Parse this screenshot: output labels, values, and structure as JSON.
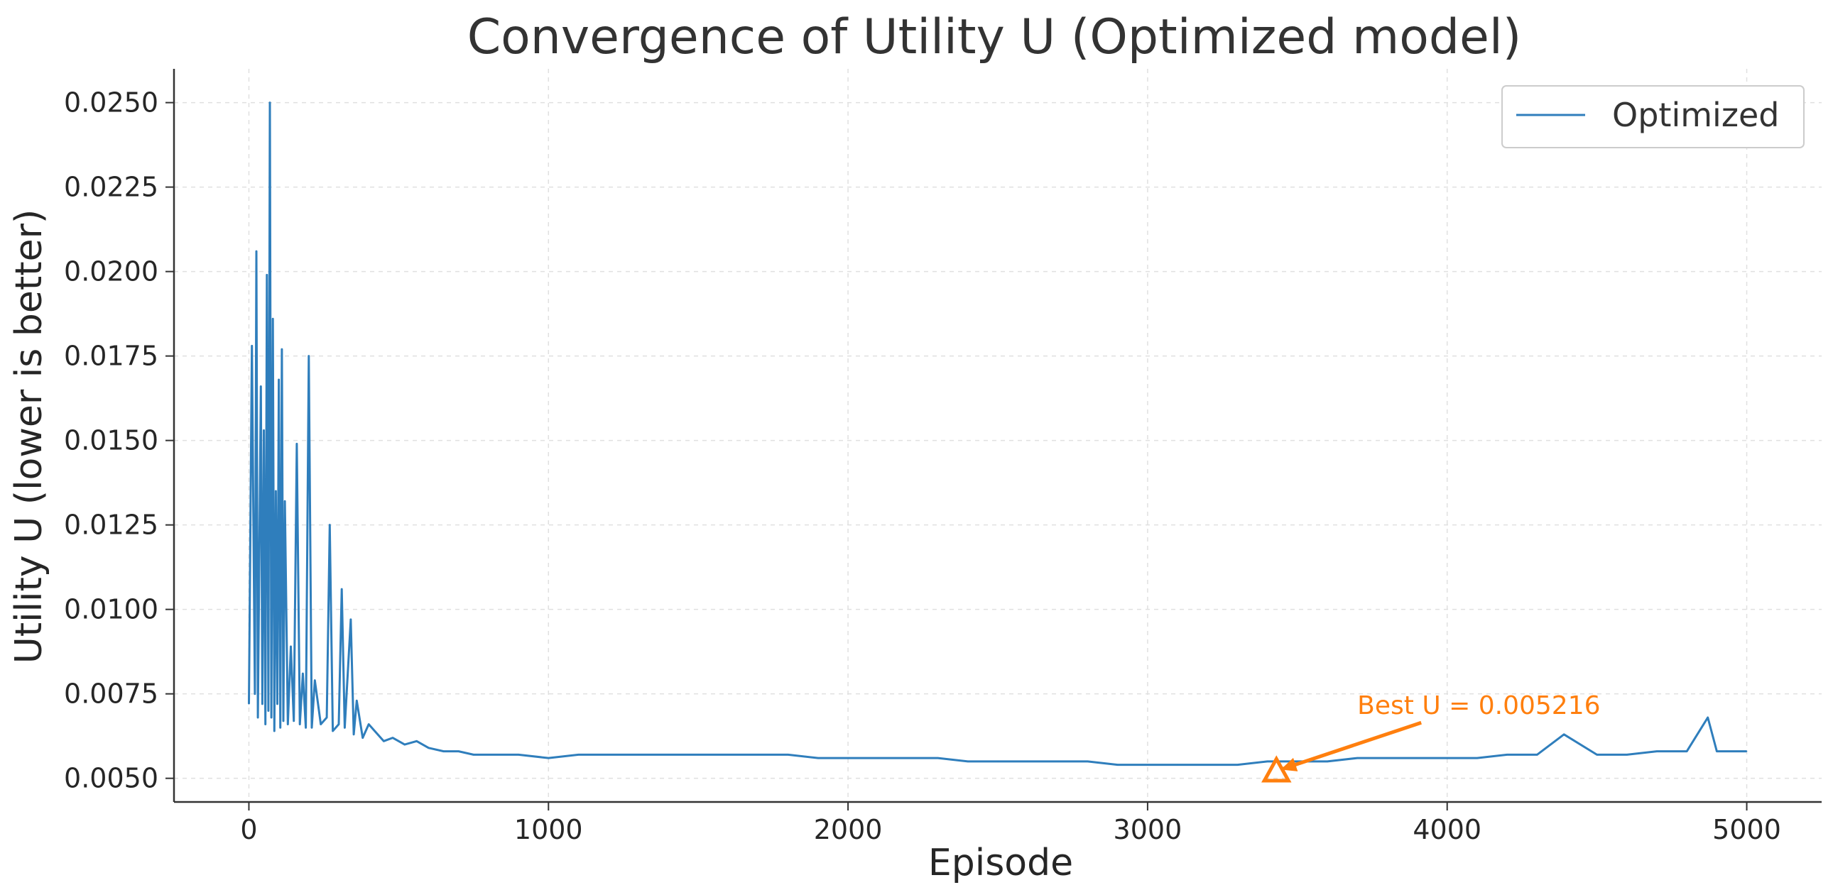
{
  "chart_data": {
    "type": "line",
    "title": "Convergence of Utility U (Optimized model)",
    "xlabel": "Episode",
    "ylabel": "Utility U (lower is better)",
    "xlim": [
      -250,
      5250
    ],
    "ylim": [
      0.0043,
      0.026
    ],
    "xticks": [
      0,
      1000,
      2000,
      3000,
      4000,
      5000
    ],
    "xtick_labels": [
      "0",
      "1000",
      "2000",
      "3000",
      "4000",
      "5000"
    ],
    "yticks": [
      0.005,
      0.0075,
      0.01,
      0.0125,
      0.015,
      0.0175,
      0.02,
      0.0225,
      0.025
    ],
    "ytick_labels": [
      "0.0050",
      "0.0075",
      "0.0100",
      "0.0125",
      "0.0150",
      "0.0175",
      "0.0200",
      "0.0225",
      "0.0250"
    ],
    "grid": true,
    "legend_placement": "top-right",
    "series": [
      {
        "name": "Optimized",
        "color": "#2f7ebc",
        "x": [
          0,
          10,
          20,
          25,
          30,
          40,
          45,
          50,
          55,
          60,
          65,
          70,
          75,
          80,
          85,
          90,
          95,
          100,
          105,
          110,
          115,
          120,
          130,
          140,
          150,
          160,
          170,
          180,
          190,
          200,
          210,
          220,
          240,
          260,
          270,
          280,
          300,
          310,
          320,
          340,
          350,
          360,
          380,
          400,
          420,
          450,
          480,
          520,
          560,
          600,
          650,
          700,
          750,
          800,
          900,
          1000,
          1100,
          1200,
          1300,
          1400,
          1500,
          1600,
          1700,
          1800,
          1900,
          2000,
          2100,
          2200,
          2300,
          2400,
          2500,
          2600,
          2700,
          2800,
          2900,
          3000,
          3100,
          3200,
          3300,
          3400,
          3420,
          3500,
          3600,
          3700,
          3800,
          3900,
          4000,
          4100,
          4200,
          4300,
          4390,
          4500,
          4600,
          4700,
          4800,
          4870,
          4900,
          5000
        ],
        "y": [
          0.0072,
          0.0178,
          0.0075,
          0.0206,
          0.0068,
          0.0166,
          0.0072,
          0.0153,
          0.0066,
          0.0199,
          0.007,
          0.025,
          0.0068,
          0.0186,
          0.0064,
          0.0135,
          0.0072,
          0.0168,
          0.0065,
          0.0177,
          0.0067,
          0.0132,
          0.0066,
          0.0089,
          0.0067,
          0.0149,
          0.0066,
          0.0081,
          0.0065,
          0.0175,
          0.0065,
          0.0079,
          0.0066,
          0.0068,
          0.0125,
          0.0064,
          0.0066,
          0.0106,
          0.0065,
          0.0097,
          0.0063,
          0.0073,
          0.0062,
          0.0066,
          0.0064,
          0.0061,
          0.0062,
          0.006,
          0.0061,
          0.0059,
          0.0058,
          0.0058,
          0.0057,
          0.0057,
          0.0057,
          0.0056,
          0.0057,
          0.0057,
          0.0057,
          0.0057,
          0.0057,
          0.0057,
          0.0057,
          0.0057,
          0.0056,
          0.0056,
          0.0056,
          0.0056,
          0.0056,
          0.0055,
          0.0055,
          0.0055,
          0.0055,
          0.0055,
          0.0054,
          0.0054,
          0.0054,
          0.0054,
          0.0054,
          0.0055,
          0.0055,
          0.0055,
          0.0055,
          0.0056,
          0.0056,
          0.0056,
          0.0056,
          0.0056,
          0.0057,
          0.0057,
          0.0063,
          0.0057,
          0.0057,
          0.0058,
          0.0058,
          0.0068,
          0.0058,
          0.0058
        ]
      }
    ],
    "annotations": [
      {
        "text": "Best U = 0.005216",
        "x": 3430,
        "y": 0.005216,
        "text_x": 3700,
        "text_y": 0.0069,
        "color": "#ff7f0e",
        "marker": "triangle-up"
      }
    ]
  }
}
